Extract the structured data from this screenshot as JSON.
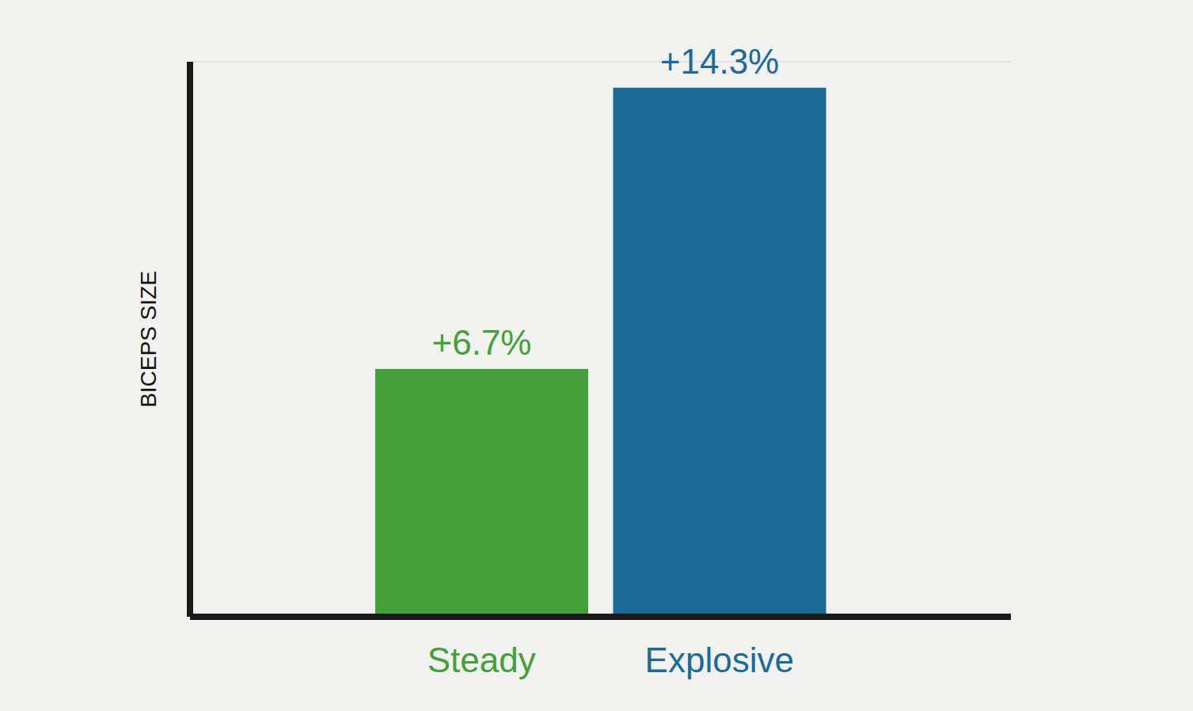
{
  "chart_data": {
    "type": "bar",
    "ylabel": "BICEPS SIZE",
    "categories": [
      "Steady",
      "Explosive"
    ],
    "values": [
      6.7,
      14.3
    ],
    "value_labels": [
      "+6.7%",
      "+14.3%"
    ],
    "colors": [
      "#43a03a",
      "#1c6b96"
    ],
    "ylim": [
      0,
      15
    ],
    "yticks": [
      0,
      3.75,
      7.5,
      11.25,
      15
    ],
    "grid": true,
    "data_labels": true,
    "tick_labels": "x"
  }
}
